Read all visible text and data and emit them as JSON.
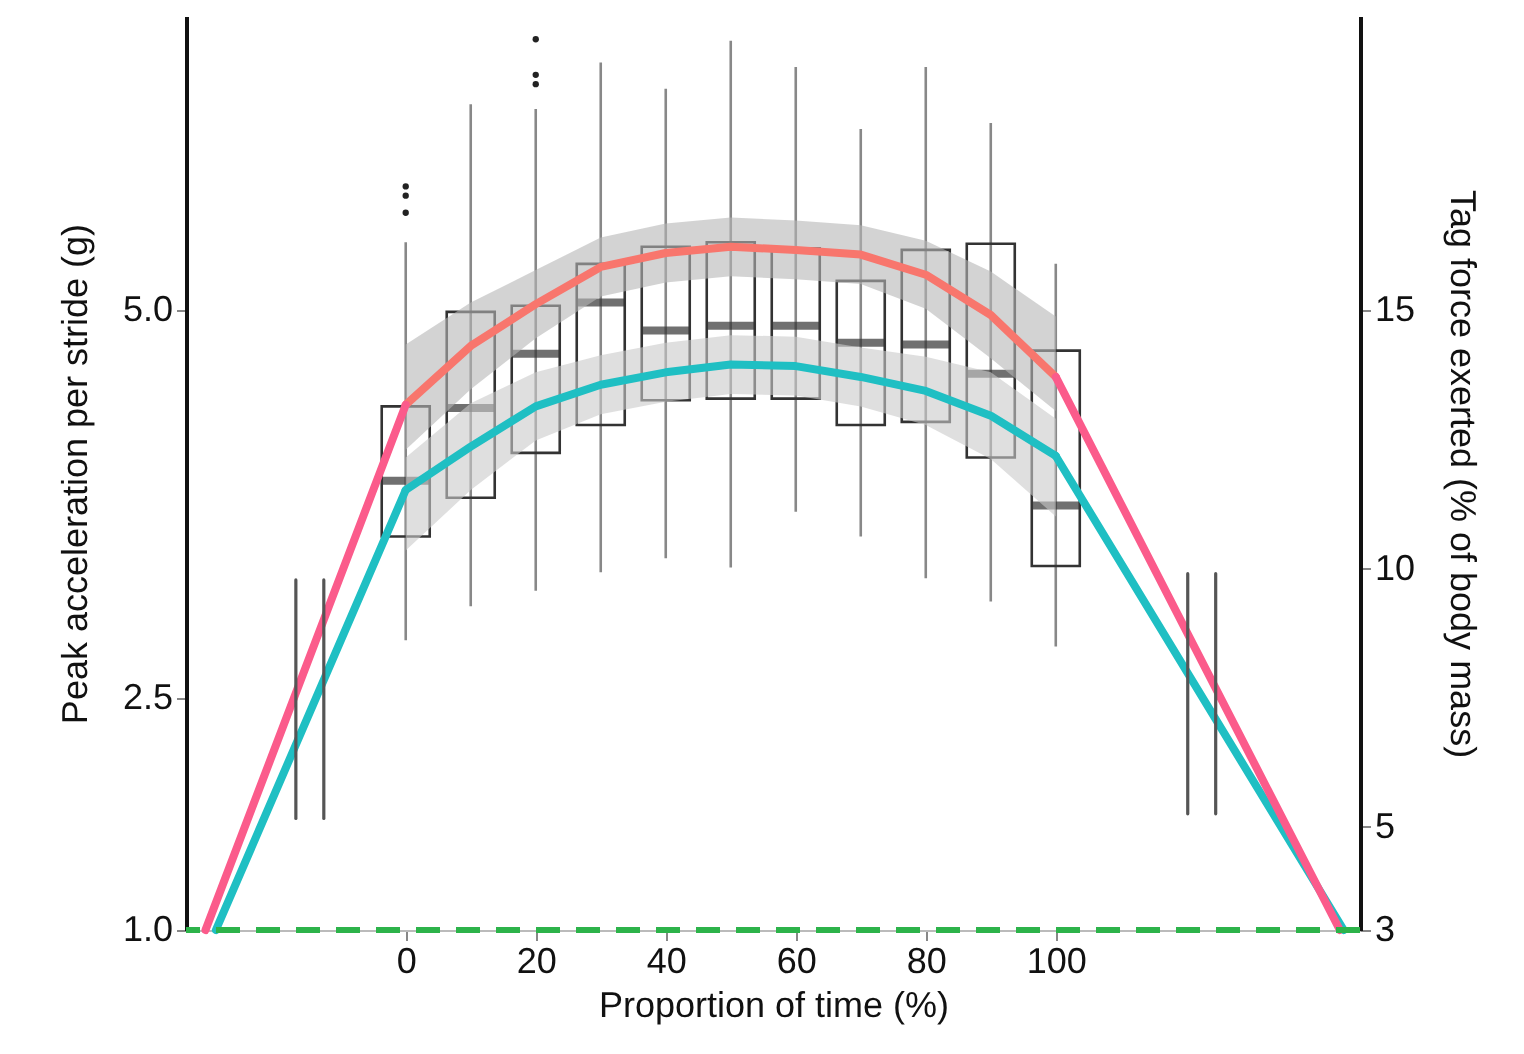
{
  "chart_data": {
    "type": "box",
    "xlabel": "Proportion of time (%)",
    "ylabel": "Peak acceleration per stride (g)",
    "y2label": "Tag force exerted (% of body mass)",
    "xlim": [
      -33.8,
      146.8
    ],
    "xticks": [
      0,
      20,
      40,
      60,
      80,
      100
    ],
    "ylim": [
      1,
      6.9
    ],
    "yticks": [
      {
        "value": 1,
        "label": "1.0"
      },
      2.5,
      {
        "value": 5,
        "label": "5.0"
      }
    ],
    "y2lim": [
      3,
      20.7
    ],
    "y2ticks": [
      3,
      5,
      10,
      15
    ],
    "ref_lines": [
      {
        "axis": "y",
        "value": 1,
        "color": "#2db34a",
        "line_style": "dashed"
      }
    ],
    "series": [
      {
        "color": "#333333",
        "x": [
          0,
          10,
          20,
          30,
          40,
          50,
          60,
          70,
          80,
          90,
          100
        ],
        "boxes": [
          {
            "low": 2.87,
            "q1": 3.54,
            "median": 3.9,
            "q3": 4.38,
            "high": 5.44,
            "outliers": [
              5.8,
              5.74,
              5.63
            ]
          },
          {
            "low": 3.09,
            "q1": 3.79,
            "median": 4.37,
            "q3": 4.99,
            "high": 6.33
          },
          {
            "low": 3.19,
            "q1": 4.08,
            "median": 4.72,
            "q3": 5.03,
            "high": 6.3,
            "outliers": [
              6.75,
              6.52,
              6.46
            ]
          },
          {
            "low": 3.31,
            "q1": 4.26,
            "median": 5.05,
            "q3": 5.3,
            "high": 6.6
          },
          {
            "low": 3.4,
            "q1": 4.42,
            "median": 4.87,
            "q3": 5.41,
            "high": 6.43
          },
          {
            "low": 3.34,
            "q1": 4.43,
            "median": 4.9,
            "q3": 5.44,
            "high": 6.74
          },
          {
            "low": 3.7,
            "q1": 4.43,
            "median": 4.9,
            "q3": 5.4,
            "high": 6.57
          },
          {
            "low": 3.54,
            "q1": 4.26,
            "median": 4.79,
            "q3": 5.19,
            "high": 6.17
          },
          {
            "low": 3.27,
            "q1": 4.28,
            "median": 4.78,
            "q3": 5.39,
            "high": 6.57
          },
          {
            "low": 3.12,
            "q1": 4.05,
            "median": 4.59,
            "q3": 5.43,
            "high": 6.21
          },
          {
            "low": 2.83,
            "q1": 3.35,
            "median": 3.74,
            "q3": 4.74,
            "high": 5.3
          }
        ]
      },
      {
        "type": "line",
        "color": "#f8766d",
        "x": [
          0,
          10,
          20,
          30,
          40,
          50,
          60,
          70,
          80,
          90,
          100
        ],
        "values": [
          4.39,
          4.77,
          5.04,
          5.28,
          5.37,
          5.41,
          5.39,
          5.36,
          5.23,
          4.97,
          4.57
        ],
        "lower": [
          4.1,
          4.49,
          4.82,
          5.09,
          5.18,
          5.22,
          5.2,
          5.17,
          5.01,
          4.69,
          4.35
        ],
        "upper": [
          4.78,
          5.05,
          5.26,
          5.47,
          5.56,
          5.6,
          5.58,
          5.55,
          5.45,
          5.25,
          4.96
        ]
      },
      {
        "type": "line",
        "color": "#1fbfc3",
        "x": [
          0,
          10,
          20,
          30,
          40,
          50,
          60,
          70,
          80,
          90,
          100
        ],
        "values": [
          3.84,
          4.12,
          4.38,
          4.52,
          4.6,
          4.65,
          4.64,
          4.57,
          4.48,
          4.32,
          4.06
        ],
        "lower": [
          3.45,
          3.84,
          4.16,
          4.33,
          4.41,
          4.46,
          4.45,
          4.38,
          4.26,
          4.04,
          3.67
        ],
        "upper": [
          4.05,
          4.4,
          4.6,
          4.71,
          4.79,
          4.84,
          4.83,
          4.76,
          4.7,
          4.6,
          4.3
        ]
      },
      {
        "type": "line",
        "color": "#1fbfc3",
        "x": [
          -29.2,
          0
        ],
        "values": [
          1.0,
          3.84
        ]
      },
      {
        "type": "line",
        "color": "#1fbfc3",
        "x": [
          100,
          144.3
        ],
        "values": [
          4.06,
          1.0
        ]
      },
      {
        "type": "line",
        "color": "#fb5b8b",
        "x": [
          -30.8,
          0
        ],
        "values": [
          1.0,
          4.39
        ]
      },
      {
        "type": "line",
        "color": "#fb5b8b",
        "x": [
          100,
          143.7
        ],
        "values": [
          4.57,
          1.0
        ]
      },
      {
        "type": "line",
        "color": "#555555",
        "x": [
          -16.9,
          -16.9
        ],
        "values": [
          3.26,
          1.72
        ]
      },
      {
        "type": "line",
        "color": "#555555",
        "x": [
          -12.6,
          -12.6
        ],
        "values": [
          3.26,
          1.72
        ]
      },
      {
        "type": "line",
        "color": "#555555",
        "x": [
          120.3,
          120.3
        ],
        "values": [
          3.3,
          1.75
        ]
      },
      {
        "type": "line",
        "color": "#555555",
        "x": [
          124.6,
          124.6
        ],
        "values": [
          3.3,
          1.75
        ]
      }
    ]
  }
}
